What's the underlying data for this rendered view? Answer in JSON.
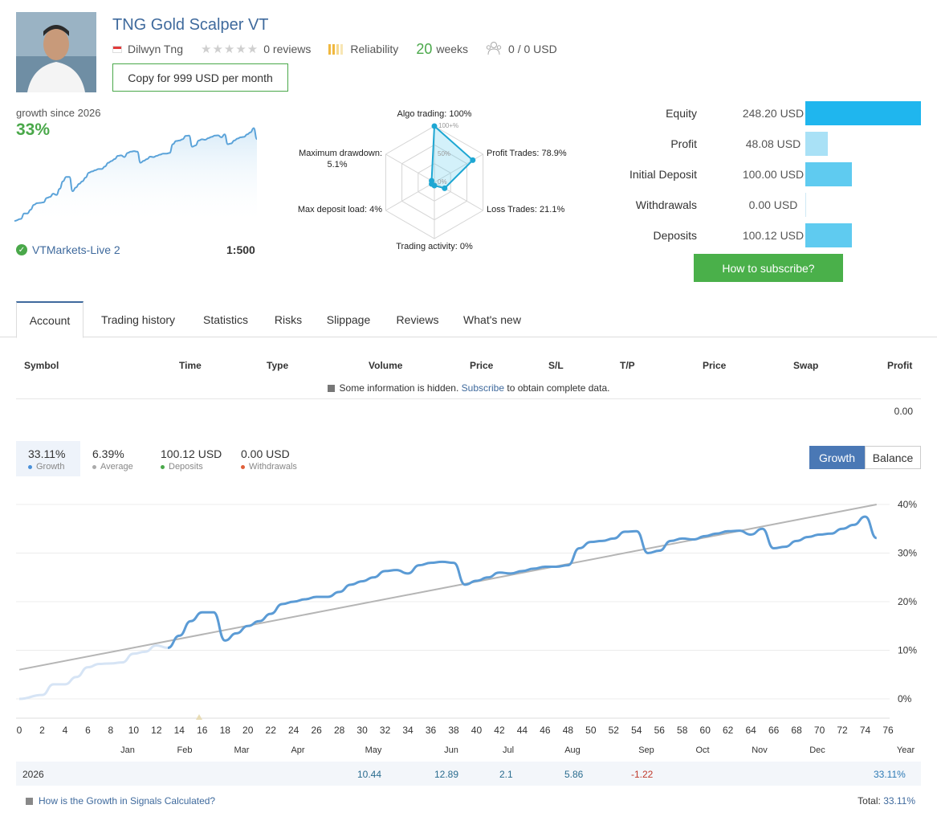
{
  "header": {
    "title": "TNG Gold Scalper VT",
    "author": "Dilwyn Tng",
    "reviews": "0 reviews",
    "reliability_label": "Reliability",
    "weeks_number": "20",
    "weeks_label": "weeks",
    "subscribers": "0 / 0 USD",
    "copy_button": "Copy for 999 USD per month"
  },
  "summary": {
    "growth_since": "growth since 2026",
    "growth_pct": "33%",
    "broker": "VTMarkets-Live 2",
    "leverage": "1:500"
  },
  "radar": {
    "algo_trading": "Algo trading: 100%",
    "profit_trades": "Profit Trades: 78.9%",
    "loss_trades": "Loss Trades: 21.1%",
    "trading_activity": "Trading activity: 0%",
    "max_deposit_load": "Max deposit load: 4%",
    "max_drawdown_l1": "Maximum drawdown:",
    "max_drawdown_l2": "5.1%",
    "ring_100": "100+%",
    "ring_50": "50%",
    "ring_0": "0%",
    "values": {
      "algo_trading": 100,
      "profit_trades": 78.9,
      "loss_trades": 21.1,
      "trading_activity": 0,
      "max_deposit_load": 4,
      "max_drawdown": 5.1
    }
  },
  "account": {
    "rows": [
      {
        "label": "Equity",
        "value": "248.20 USD",
        "amount": 248.2,
        "color": "#1fb6ee"
      },
      {
        "label": "Profit",
        "value": "48.08 USD",
        "amount": 48.08,
        "color": "#a9e1f6"
      },
      {
        "label": "Initial Deposit",
        "value": "100.00 USD",
        "amount": 100.0,
        "color": "#5fcbf0"
      },
      {
        "label": "Withdrawals",
        "value": "0.00 USD",
        "amount": 0.0,
        "color": "#5fcbf0"
      },
      {
        "label": "Deposits",
        "value": "100.12 USD",
        "amount": 100.12,
        "color": "#5fcbf0"
      }
    ],
    "subscribe_button": "How to subscribe?"
  },
  "tabs": [
    "Account",
    "Trading history",
    "Statistics",
    "Risks",
    "Slippage",
    "Reviews",
    "What's new"
  ],
  "table": {
    "columns": [
      "Symbol",
      "Time",
      "Type",
      "Volume",
      "Price",
      "S/L",
      "T/P",
      "Price",
      "Swap",
      "Profit"
    ],
    "hidden_prefix": "Some information is hidden.",
    "hidden_link": "Subscribe",
    "hidden_suffix": "to obtain complete data.",
    "total_profit": "0.00"
  },
  "growth_summary": [
    {
      "value": "33.11%",
      "label": "Growth",
      "color": "#4a90d9"
    },
    {
      "value": "6.39%",
      "label": "Average",
      "color": "#aaaaaa"
    },
    {
      "value": "100.12 USD",
      "label": "Deposits",
      "color": "#4aa84a"
    },
    {
      "value": "0.00 USD",
      "label": "Withdrawals",
      "color": "#e0603a"
    }
  ],
  "toggle": {
    "growth": "Growth",
    "balance": "Balance"
  },
  "chart_data": {
    "type": "line",
    "x_ticks": [
      "0",
      "2",
      "4",
      "6",
      "8",
      "10",
      "12",
      "14",
      "16",
      "18",
      "20",
      "22",
      "24",
      "26",
      "28",
      "30",
      "32",
      "34",
      "36",
      "38",
      "40",
      "42",
      "44",
      "46",
      "48",
      "50",
      "52",
      "54",
      "56",
      "58",
      "60",
      "62",
      "64",
      "66",
      "68",
      "70",
      "72",
      "74",
      "76"
    ],
    "months": [
      "Jan",
      "Feb",
      "Mar",
      "Apr",
      "May",
      "Jun",
      "Jul",
      "Aug",
      "Sep",
      "Oct",
      "Nov",
      "Dec",
      "Year"
    ],
    "y_ticks": [
      "40%",
      "30%",
      "20%",
      "10%",
      "0%"
    ],
    "ylim": [
      0,
      40
    ],
    "xlim": [
      0,
      76
    ],
    "series": [
      {
        "values": [
          [
            0,
            0
          ],
          [
            2,
            0.8
          ],
          [
            3,
            3
          ],
          [
            4,
            3
          ],
          [
            5,
            4.5
          ],
          [
            6,
            6.5
          ],
          [
            7,
            7.2
          ],
          [
            8,
            7.3
          ],
          [
            9,
            7.5
          ],
          [
            10,
            9.3
          ],
          [
            11,
            9.7
          ],
          [
            12,
            11
          ],
          [
            13,
            10.5
          ],
          [
            14,
            13
          ],
          [
            15,
            16
          ],
          [
            16,
            17.8
          ],
          [
            17,
            17.8
          ],
          [
            18,
            12
          ],
          [
            19,
            13.5
          ],
          [
            20,
            15
          ],
          [
            21,
            16
          ],
          [
            22,
            17.5
          ],
          [
            23,
            19.5
          ],
          [
            24,
            20
          ],
          [
            25,
            20.5
          ],
          [
            26,
            21
          ],
          [
            27,
            21
          ],
          [
            28,
            22
          ],
          [
            29,
            23.5
          ],
          [
            30,
            24.2
          ],
          [
            31,
            25
          ],
          [
            32,
            26.3
          ],
          [
            33,
            26.5
          ],
          [
            34,
            25.8
          ],
          [
            35,
            27.5
          ],
          [
            36,
            28
          ],
          [
            37,
            28.2
          ],
          [
            38,
            28
          ],
          [
            39,
            23.5
          ],
          [
            40,
            24.3
          ],
          [
            41,
            25
          ],
          [
            42,
            26
          ],
          [
            43,
            25.8
          ],
          [
            44,
            26.3
          ],
          [
            45,
            26.8
          ],
          [
            46,
            27.2
          ],
          [
            47,
            27.2
          ],
          [
            48,
            27.5
          ],
          [
            49,
            31
          ],
          [
            50,
            32.3
          ],
          [
            51,
            32.5
          ],
          [
            52,
            33
          ],
          [
            53,
            34.4
          ],
          [
            54,
            34.5
          ],
          [
            55,
            30
          ],
          [
            56,
            30.5
          ],
          [
            57,
            32.5
          ],
          [
            58,
            33
          ],
          [
            59,
            32.8
          ],
          [
            60,
            33.5
          ],
          [
            61,
            34
          ],
          [
            62,
            34.5
          ],
          [
            63,
            34.6
          ],
          [
            64,
            33.8
          ],
          [
            65,
            35
          ],
          [
            66,
            31
          ],
          [
            67,
            31.3
          ],
          [
            68,
            32.5
          ],
          [
            69,
            33.3
          ],
          [
            70,
            33.8
          ],
          [
            71,
            34
          ],
          [
            72,
            35
          ],
          [
            73,
            35.8
          ],
          [
            74,
            37.5
          ],
          [
            75,
            33.1
          ]
        ]
      },
      {
        "values": [
          [
            0,
            6
          ],
          [
            75,
            40
          ]
        ]
      }
    ]
  },
  "year_row": {
    "year": "2026",
    "cells": [
      {
        "month": "May",
        "value": "10.44"
      },
      {
        "month": "Jun",
        "value": "12.89"
      },
      {
        "month": "Jul",
        "value": "2.1"
      },
      {
        "month": "Aug",
        "value": "5.86"
      },
      {
        "month": "Sep",
        "value": "-1.22"
      },
      {
        "month": "Year",
        "value": "33.11%"
      }
    ]
  },
  "footer": {
    "link": "How is the Growth in Signals Calculated?",
    "total_label": "Total:",
    "total_value": "33.11%"
  }
}
